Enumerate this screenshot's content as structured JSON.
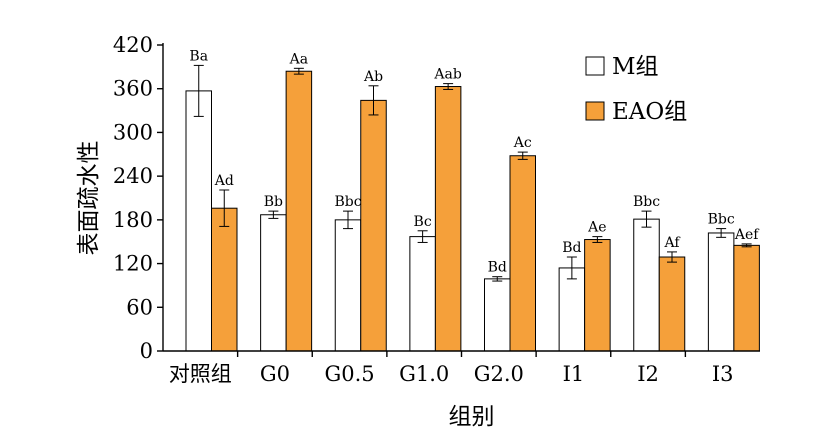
{
  "chart_data": {
    "type": "bar",
    "title": "",
    "xlabel": "组别",
    "ylabel": "表面疏水性",
    "ylim": [
      0,
      420
    ],
    "yticks": [
      0,
      60,
      120,
      180,
      240,
      300,
      360,
      420
    ],
    "legend_position": "top-right",
    "categories": [
      "对照组",
      "G0",
      "G0.5",
      "G1.0",
      "G2.0",
      "I1",
      "I2",
      "I3"
    ],
    "series": [
      {
        "name": "M组",
        "color": "#ffffff",
        "values": [
          357,
          187,
          180,
          157,
          99,
          114,
          181,
          162
        ],
        "errors": [
          35,
          5,
          12,
          8,
          3,
          15,
          11,
          6
        ],
        "labels": [
          "Ba",
          "Bb",
          "Bbc",
          "Bc",
          "Bd",
          "Bd",
          "Bbc",
          "Bbc"
        ]
      },
      {
        "name": "EAO组",
        "color": "#f5a03a",
        "values": [
          196,
          384,
          344,
          363,
          268,
          153,
          129,
          145
        ],
        "errors": [
          25,
          4,
          20,
          4,
          5,
          4,
          7,
          2
        ],
        "labels": [
          "Ad",
          "Aa",
          "Ab",
          "Aab",
          "Ac",
          "Ae",
          "Af",
          "Aef"
        ]
      }
    ]
  }
}
